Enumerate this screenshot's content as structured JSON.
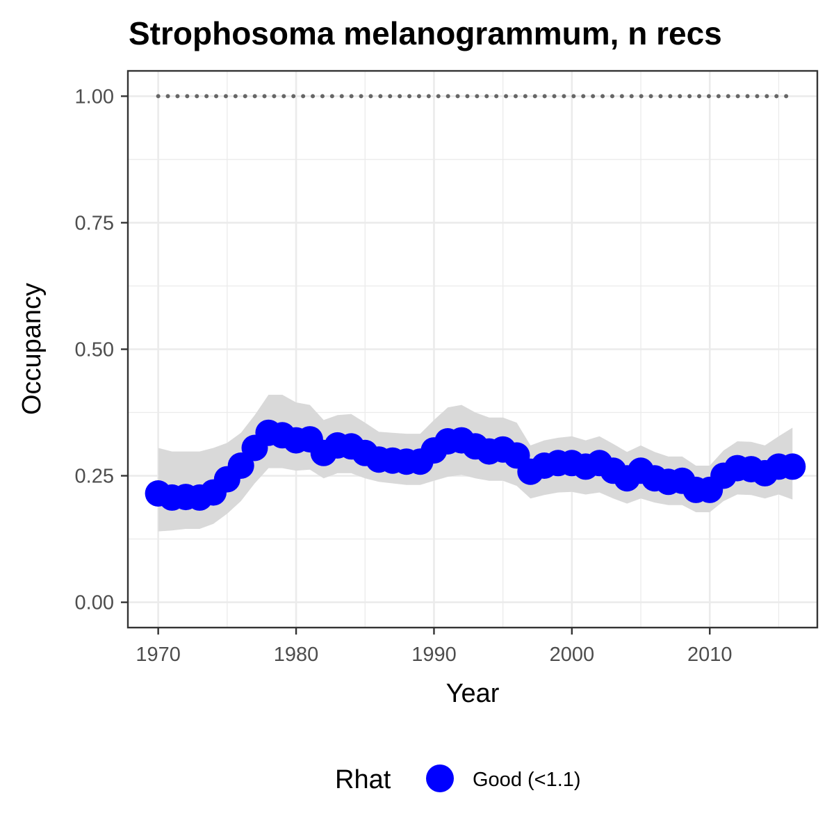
{
  "chart_data": {
    "type": "line",
    "title": "Strophosoma melanogrammum, n recs",
    "xlabel": "Year",
    "ylabel": "Occupancy",
    "xlim": [
      1967.8,
      2017.8
    ],
    "ylim": [
      -0.05,
      1.05
    ],
    "x_ticks": [
      1970,
      1980,
      1990,
      2000,
      2010
    ],
    "x_tick_labels": [
      "1970",
      "1980",
      "1990",
      "2000",
      "2010"
    ],
    "y_ticks": [
      0,
      0.25,
      0.5,
      0.75,
      1
    ],
    "y_tick_labels": [
      "0.00",
      "0.25",
      "0.50",
      "0.75",
      "1.00"
    ],
    "grid": true,
    "legend": {
      "title": "Rhat",
      "position": "bottom",
      "entries": [
        {
          "label": "Good (<1.1)",
          "color": "#0000ff"
        }
      ]
    },
    "colors": {
      "points": "#0000ff",
      "ribbon": "#d9d9d9",
      "reference": "#666666",
      "panel_border": "#333333",
      "grid": "#ebebeb"
    },
    "reference_line": {
      "y": 1.0,
      "style": "dotted",
      "x_start": 1970,
      "x_end": 2016
    },
    "x": [
      1970,
      1971,
      1972,
      1973,
      1974,
      1975,
      1976,
      1977,
      1978,
      1979,
      1980,
      1981,
      1982,
      1983,
      1984,
      1985,
      1986,
      1987,
      1988,
      1989,
      1990,
      1991,
      1992,
      1993,
      1994,
      1995,
      1996,
      1997,
      1998,
      1999,
      2000,
      2001,
      2002,
      2003,
      2004,
      2005,
      2006,
      2007,
      2008,
      2009,
      2010,
      2011,
      2012,
      2013,
      2014,
      2015,
      2016
    ],
    "series": [
      {
        "values": [
          0.215,
          0.207,
          0.208,
          0.207,
          0.217,
          0.243,
          0.27,
          0.305,
          0.335,
          0.33,
          0.32,
          0.322,
          0.295,
          0.31,
          0.308,
          0.295,
          0.282,
          0.28,
          0.278,
          0.278,
          0.3,
          0.318,
          0.32,
          0.308,
          0.298,
          0.302,
          0.29,
          0.258,
          0.27,
          0.275,
          0.275,
          0.268,
          0.275,
          0.26,
          0.245,
          0.26,
          0.245,
          0.238,
          0.24,
          0.222,
          0.222,
          0.25,
          0.265,
          0.263,
          0.255,
          0.268,
          0.268
        ],
        "lower": [
          0.14,
          0.142,
          0.145,
          0.145,
          0.155,
          0.175,
          0.2,
          0.235,
          0.265,
          0.265,
          0.26,
          0.262,
          0.245,
          0.255,
          0.255,
          0.245,
          0.238,
          0.235,
          0.232,
          0.232,
          0.24,
          0.248,
          0.252,
          0.245,
          0.24,
          0.24,
          0.23,
          0.205,
          0.212,
          0.217,
          0.218,
          0.213,
          0.217,
          0.205,
          0.195,
          0.205,
          0.197,
          0.192,
          0.192,
          0.178,
          0.178,
          0.2,
          0.213,
          0.212,
          0.205,
          0.213,
          0.203
        ],
        "upper": [
          0.305,
          0.298,
          0.298,
          0.298,
          0.305,
          0.315,
          0.335,
          0.37,
          0.41,
          0.41,
          0.395,
          0.39,
          0.36,
          0.37,
          0.372,
          0.355,
          0.337,
          0.335,
          0.333,
          0.333,
          0.36,
          0.385,
          0.39,
          0.375,
          0.365,
          0.365,
          0.355,
          0.31,
          0.32,
          0.325,
          0.328,
          0.32,
          0.328,
          0.313,
          0.297,
          0.31,
          0.297,
          0.288,
          0.288,
          0.27,
          0.27,
          0.3,
          0.318,
          0.317,
          0.31,
          0.328,
          0.345
        ]
      }
    ]
  }
}
